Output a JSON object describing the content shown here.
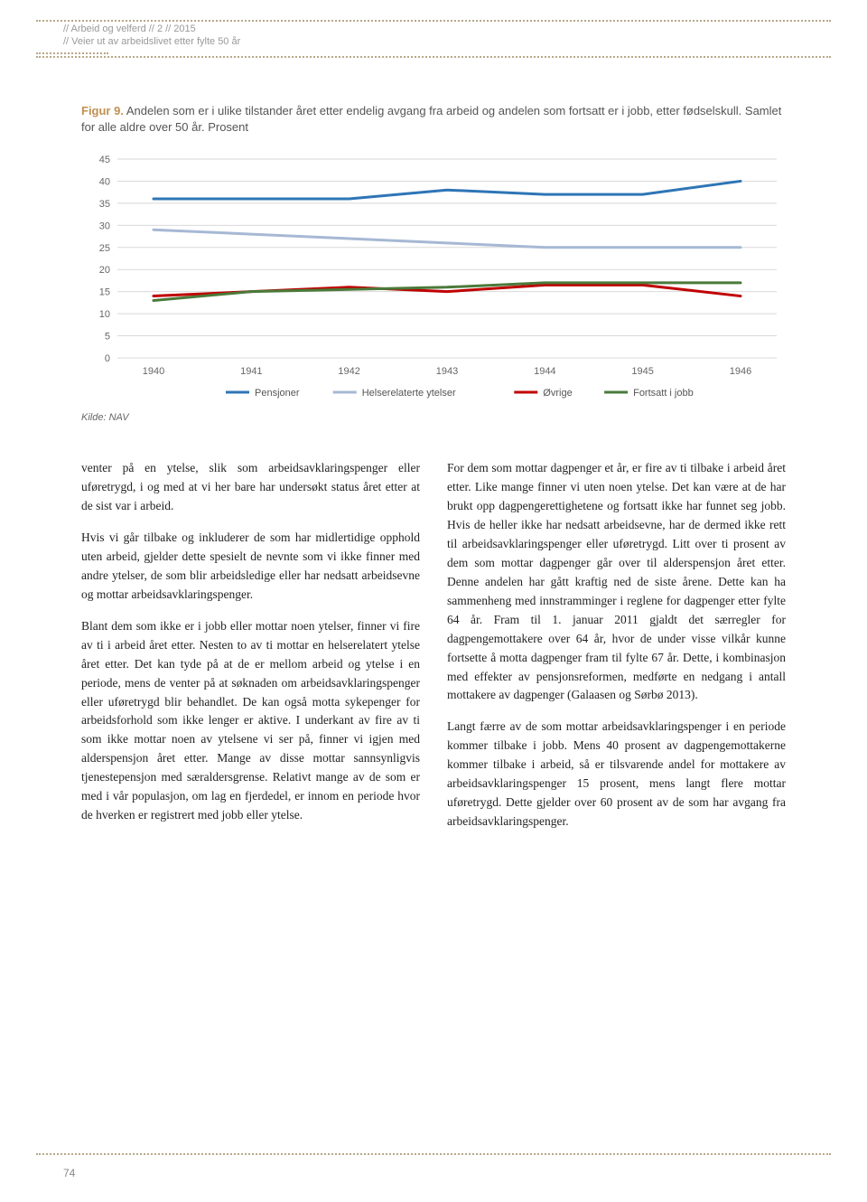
{
  "header": {
    "line1": "//  Arbeid og velferd  //  2  //  2015",
    "line2": "//  Veier ut av arbeidslivet etter fylte 50 år"
  },
  "figure": {
    "label": "Figur 9.",
    "caption": "Andelen som er i ulike tilstander året etter endelig avgang fra arbeid og andelen som fortsatt er i jobb, etter fødselskull. Samlet for alle aldre over 50 år. Prosent",
    "kilde": "Kilde: NAV"
  },
  "chart": {
    "type": "line",
    "x_categories": [
      "1940",
      "1941",
      "1942",
      "1943",
      "1944",
      "1945",
      "1946"
    ],
    "ylim": [
      0,
      45
    ],
    "ytick_step": 5,
    "yticks": [
      "0",
      "5",
      "10",
      "15",
      "20",
      "25",
      "30",
      "35",
      "40",
      "45"
    ],
    "grid_color": "#d9d9d9",
    "background_color": "#ffffff",
    "axis_fontsize": 11,
    "line_width": 3,
    "series": [
      {
        "name": "Pensjoner",
        "color": "#2e75b6",
        "values": [
          36,
          36,
          36,
          38,
          37,
          37,
          40
        ]
      },
      {
        "name": "Helserelaterte ytelser",
        "color": "#a6b8d4",
        "values": [
          29,
          28,
          27,
          26,
          25,
          25,
          25
        ]
      },
      {
        "name": "Øvrige",
        "color": "#c00000",
        "values": [
          14,
          15,
          16,
          15,
          16.5,
          16.5,
          14
        ]
      },
      {
        "name": "Fortsatt i jobb",
        "color": "#4a7a3a",
        "values": [
          13,
          15,
          15.5,
          16,
          17,
          17,
          17
        ]
      }
    ],
    "legend_fontsize": 11
  },
  "body": {
    "col1": {
      "p1": "venter på en ytelse, slik som arbeidsavklaringspenger eller uføretrygd, i og med at vi her bare har undersøkt status året etter at de sist var i arbeid.",
      "p2": "Hvis vi går tilbake og inkluderer de som har midlertidige opphold uten arbeid, gjelder dette spesielt de nevnte som vi ikke finner med andre ytelser, de som blir arbeidsledige eller har nedsatt arbeidsevne og mottar arbeidsavklaringspenger.",
      "p3": "Blant dem som ikke er i jobb eller mottar noen ytelser, finner vi fire av ti i arbeid året etter. Nesten to av ti mottar en helserelatert ytelse året etter. Det kan tyde på at de er mellom arbeid og ytelse i en periode, mens de venter på at søknaden om arbeidsavklaringspenger eller uføretrygd blir behandlet. De kan også motta sykepenger for arbeidsforhold som ikke lenger er aktive. I underkant av fire av ti som ikke mottar noen av ytelsene vi ser på, finner vi igjen med alderspensjon året etter. Mange av disse mottar sannsynligvis tjenestepensjon med særaldersgrense. Relativt mange av de som er med i vår populasjon, om lag en fjerdedel, er innom en periode hvor de hverken er registrert med jobb eller ytelse."
    },
    "col2": {
      "p1": "For dem som mottar dagpenger et år, er fire av ti tilbake i arbeid året etter. Like mange finner vi uten noen ytelse. Det kan være at de har brukt opp dagpengerettighetene og fortsatt ikke har funnet seg jobb. Hvis de heller ikke har nedsatt arbeidsevne, har de dermed ikke rett til arbeidsavklaringspenger eller uføretrygd. Litt over ti prosent av dem som mottar dagpenger går over til alderspensjon året etter. Denne andelen har gått kraftig ned de siste årene. Dette kan ha sammenheng med innstramminger i reglene for dagpenger etter fylte 64 år. Fram til 1. januar 2011 gjaldt det særregler for dagpengemottakere over 64 år, hvor de under visse vilkår kunne fortsette å motta dagpenger fram til fylte 67 år. Dette, i kombinasjon med effekter av pensjonsreformen, medførte en nedgang i antall mottakere av dagpenger (Galaasen og Sørbø 2013).",
      "p2": "Langt færre av de som mottar arbeidsavklaringspenger i en periode kommer tilbake i jobb. Mens 40 prosent av dagpengemottakerne kommer tilbake i arbeid, så er tilsvarende andel for mottakere av arbeidsavklaringspenger 15 prosent, mens langt flere mottar uføretrygd. Dette gjelder over 60 prosent av de som har avgang fra arbeidsavklaringspenger."
    }
  },
  "page_number": "74"
}
